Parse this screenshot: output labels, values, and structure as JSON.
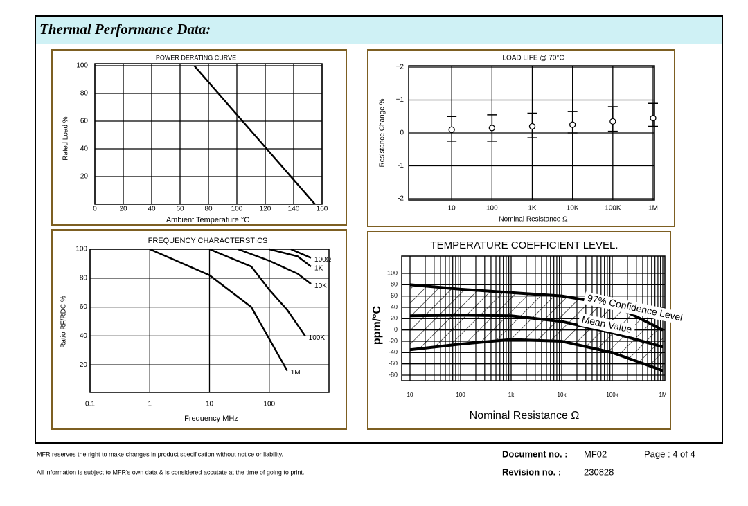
{
  "header": {
    "title": "Thermal Performance Data:"
  },
  "chart_data": [
    {
      "type": "line",
      "title": "POWER DERATING CURVE",
      "xlabel": "Ambient Temperature °C",
      "ylabel": "Rated Load %",
      "x": [
        70,
        155
      ],
      "values": [
        100,
        0
      ],
      "color": "#000000",
      "xlim": [
        0,
        160
      ],
      "xticks": [
        0,
        20,
        40,
        60,
        80,
        100,
        120,
        140,
        160
      ],
      "ylim": [
        0,
        100
      ],
      "yticks": [
        20,
        40,
        60,
        80,
        100
      ],
      "grid": true
    },
    {
      "type": "errorbar",
      "title": "LOAD LIFE @ 70°C",
      "xlabel": "Nominal Resistance Ω",
      "ylabel": "Resistance Change %",
      "categories": [
        "10",
        "100",
        "1K",
        "10K",
        "100K",
        "1M"
      ],
      "values": [
        0.1,
        0.15,
        0.2,
        0.25,
        0.35,
        0.45
      ],
      "high": [
        0.5,
        0.55,
        0.6,
        0.65,
        0.8,
        0.9
      ],
      "low": [
        -0.25,
        -0.25,
        -0.15,
        0,
        0.05,
        0.2
      ],
      "color": "#000000",
      "ylim": [
        -2,
        2
      ],
      "yticks": [
        {
          "value": 2,
          "label": "+2"
        },
        {
          "value": 1,
          "label": "+1"
        },
        0,
        -1,
        -2
      ],
      "grid": true
    },
    {
      "type": "line",
      "title": "FREQUENCY CHARACTERSTICS",
      "xlabel": "Frequency MHz",
      "ylabel": "Ratio RF/RDC %",
      "xscale": "log",
      "xlim": [
        0.1,
        1000
      ],
      "xticks": [
        0.1,
        1,
        10,
        100
      ],
      "ylim": [
        0,
        100
      ],
      "yticks": [
        20,
        40,
        60,
        80,
        100
      ],
      "grid": true,
      "series": [
        {
          "name": "100Ω",
          "color": "#000000",
          "x": [
            230,
            500
          ],
          "values": [
            100,
            94
          ]
        },
        {
          "name": "1K",
          "color": "#000000",
          "x": [
            100,
            300,
            500
          ],
          "values": [
            100,
            95,
            88
          ]
        },
        {
          "name": "10K",
          "color": "#000000",
          "x": [
            30,
            100,
            300,
            500
          ],
          "values": [
            100,
            92,
            83,
            76
          ]
        },
        {
          "name": "100K",
          "color": "#000000",
          "x": [
            10,
            50,
            100,
            200,
            400
          ],
          "values": [
            100,
            88,
            72,
            58,
            40
          ]
        },
        {
          "name": "1M",
          "color": "#000000",
          "x": [
            1,
            10,
            50,
            100,
            200
          ],
          "values": [
            100,
            82,
            60,
            38,
            16
          ]
        }
      ]
    },
    {
      "type": "line",
      "title": "TEMPERATURE COEFFICIENT LEVEL.",
      "xlabel": "Nominal Resistance Ω",
      "ylabel": "ppm/°C",
      "xscale": "log",
      "xlim": [
        10,
        1000000
      ],
      "xticks": [
        10,
        100,
        {
          "value": 1000,
          "label": "1k"
        },
        {
          "value": 10000,
          "label": "10k"
        },
        {
          "value": 100000,
          "label": "100k"
        },
        {
          "value": 1000000,
          "label": "1M"
        }
      ],
      "ylim": [
        -80,
        100
      ],
      "yticks": [
        100,
        80,
        60,
        40,
        20,
        0,
        -20,
        -40,
        -60,
        -80
      ],
      "grid": true,
      "x": [
        10,
        100,
        1000,
        10000,
        100000,
        1000000
      ],
      "series": [
        {
          "name": "97% Confidence Level",
          "color": "#000000",
          "values": [
            80,
            72,
            66,
            60,
            45,
            0
          ]
        },
        {
          "name": "Mean Value",
          "color": "#000000",
          "values": [
            25,
            26,
            25,
            15,
            -5,
            -30
          ]
        },
        {
          "color": "#000000",
          "values": [
            -35,
            -25,
            -17,
            -20,
            -40,
            -72
          ]
        }
      ]
    }
  ],
  "footer": {
    "notes": [
      "MFR reserves the right to make changes in product specification without notice or liability.",
      "All information is subject to MFR's own data & is considered accutate at the time of going to print."
    ],
    "document_label": "Document no. :",
    "document_no": "MF02",
    "page": "Page : 4 of 4",
    "revision_label": "Revision no. :",
    "revision_no": "230828"
  }
}
